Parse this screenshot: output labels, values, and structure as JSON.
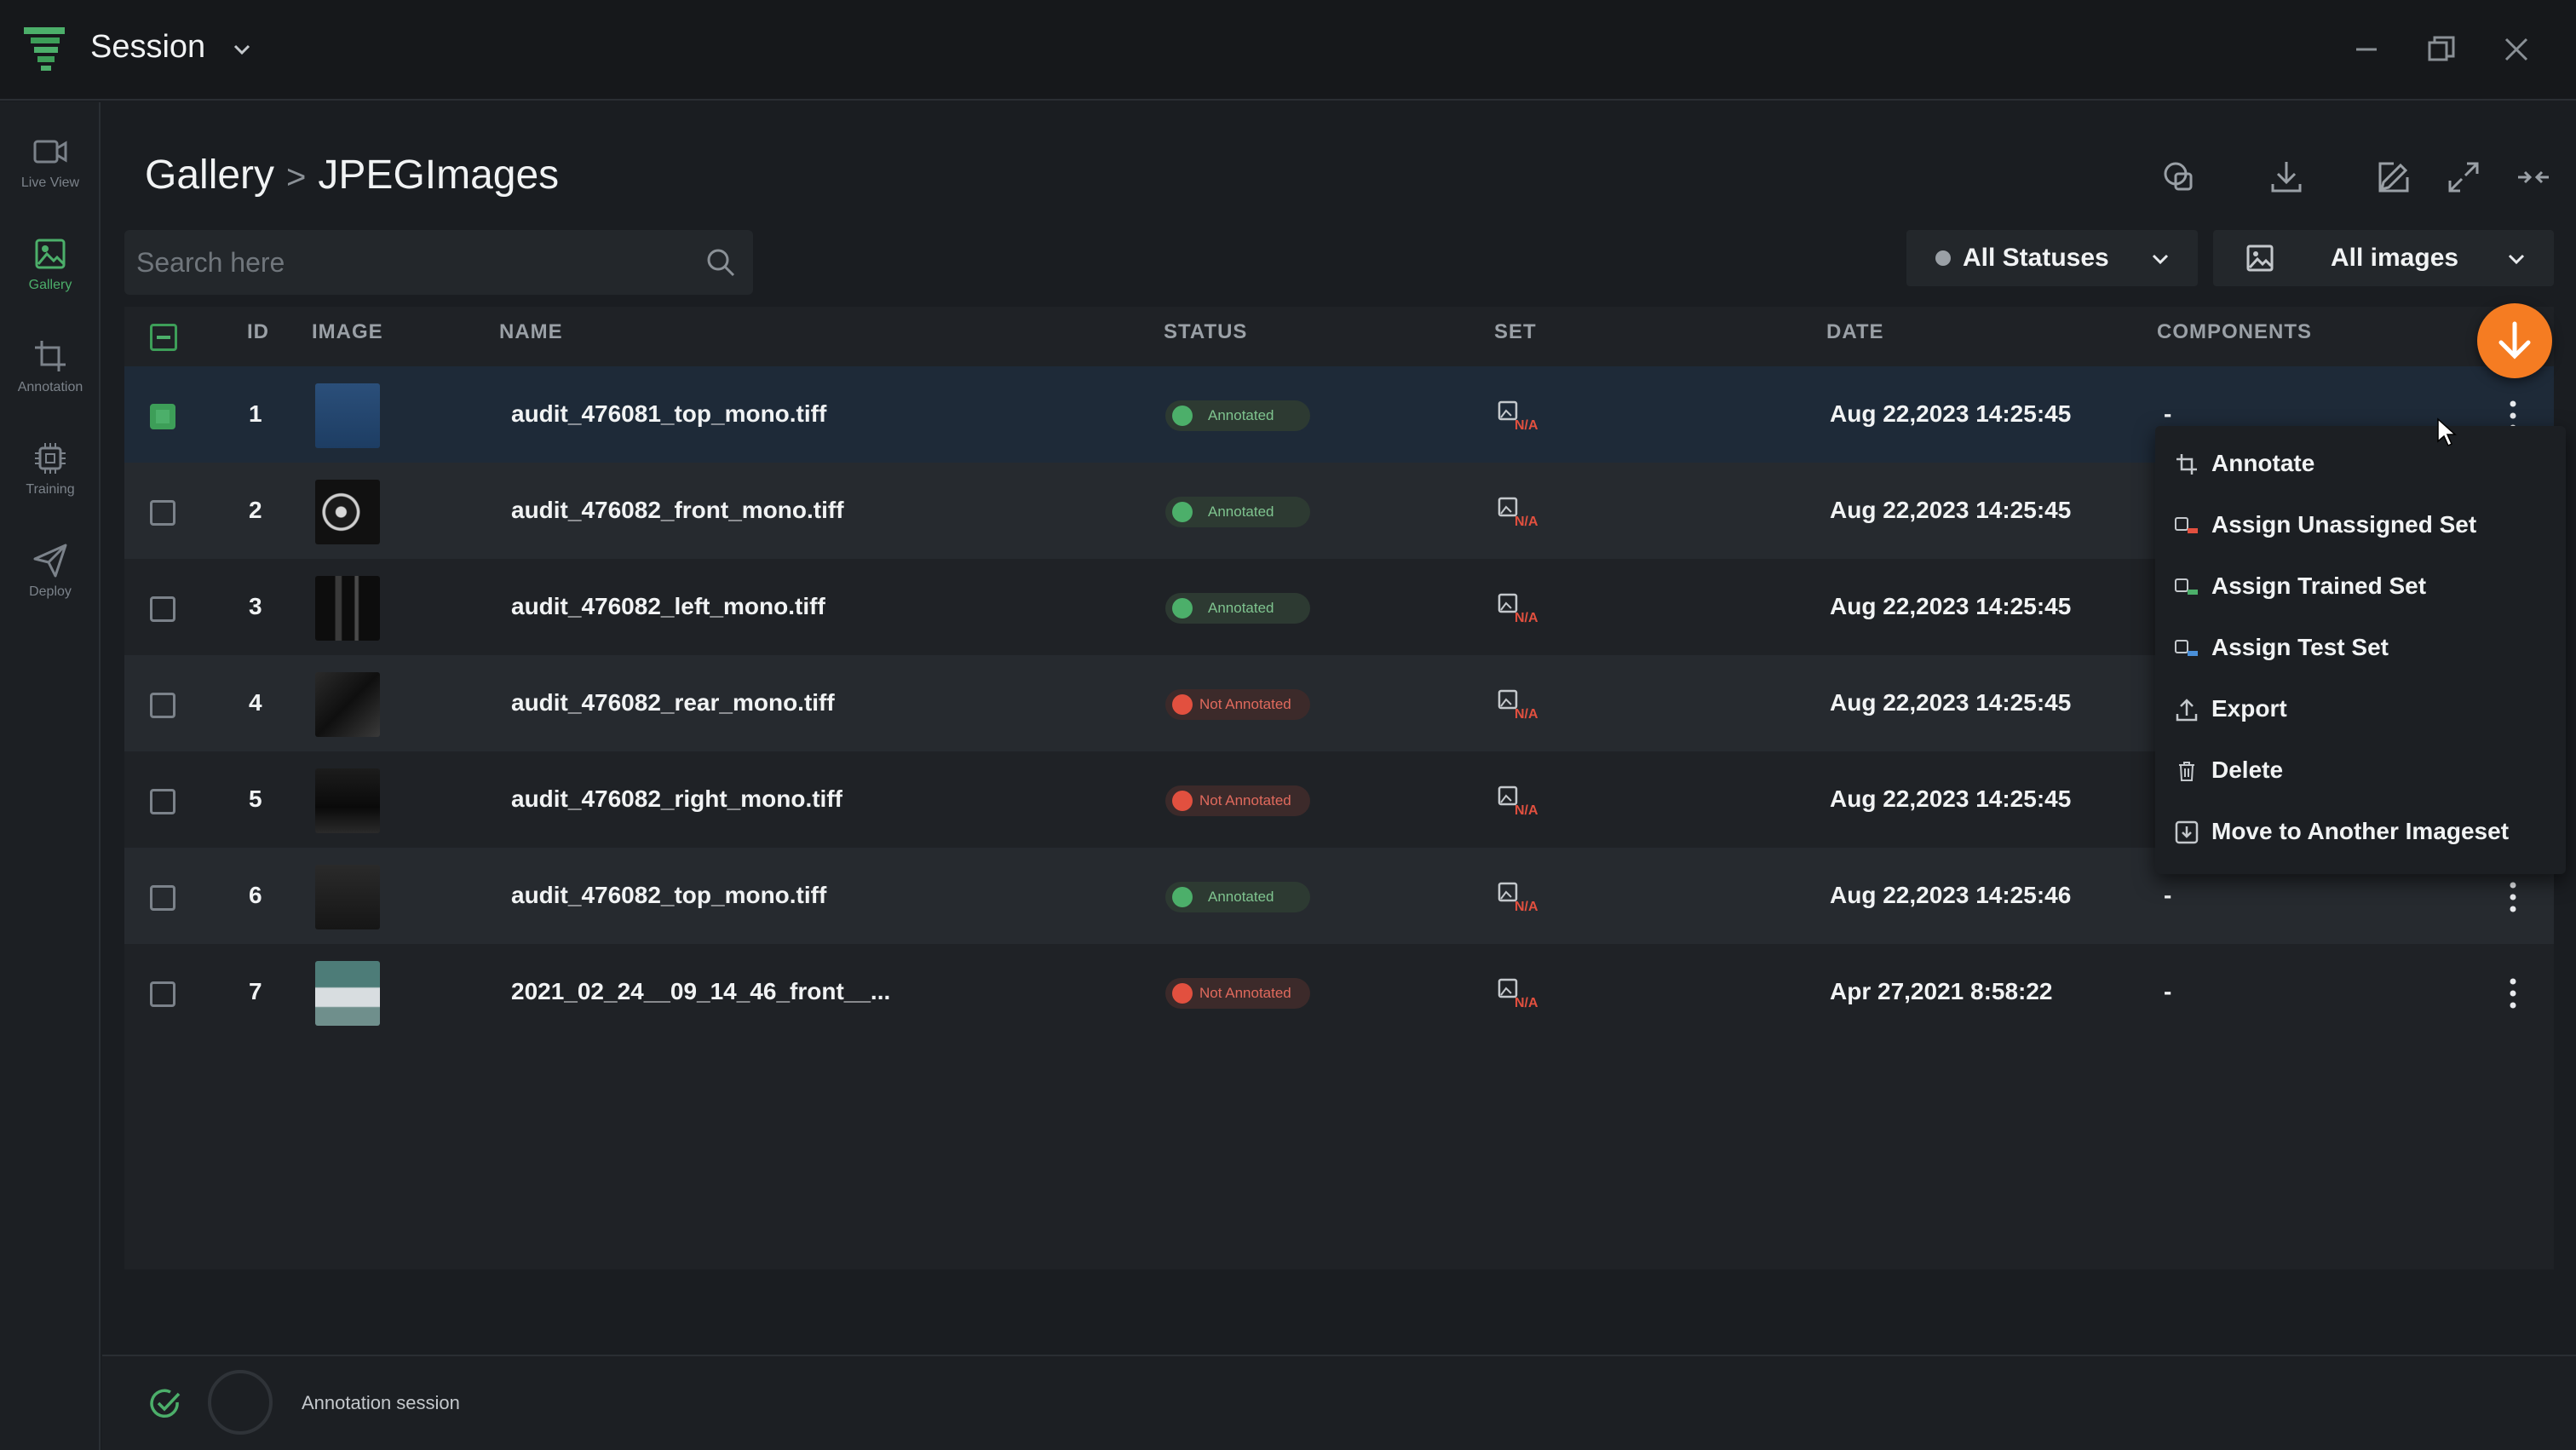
{
  "window": {
    "title": "Session",
    "accent": "#4caf6a",
    "fab_color": "#f57c22"
  },
  "sidebar": {
    "items": [
      {
        "label": "Live View",
        "icon": "video-icon"
      },
      {
        "label": "Gallery",
        "icon": "image-icon",
        "active": true
      },
      {
        "label": "Annotation",
        "icon": "crop-icon"
      },
      {
        "label": "Training",
        "icon": "chip-icon"
      },
      {
        "label": "Deploy",
        "icon": "send-icon"
      }
    ]
  },
  "breadcrumb": {
    "root": "Gallery",
    "separator": ">",
    "current": "JPEGImages"
  },
  "search": {
    "placeholder": "Search here",
    "value": ""
  },
  "filters": {
    "status": "All Statuses",
    "images": "All images"
  },
  "table": {
    "headers": [
      "ID",
      "IMAGE",
      "NAME",
      "STATUS",
      "SET",
      "DATE",
      "COMPONENTS"
    ],
    "rows": [
      {
        "id": "1",
        "name": "audit_476081_top_mono.tiff",
        "status": "Annotated",
        "set": "N/A",
        "date": "Aug 22,2023 14:25:45",
        "components": "-",
        "selected": true
      },
      {
        "id": "2",
        "name": "audit_476082_front_mono.tiff",
        "status": "Annotated",
        "set": "N/A",
        "date": "Aug 22,2023 14:25:45",
        "components": ""
      },
      {
        "id": "3",
        "name": "audit_476082_left_mono.tiff",
        "status": "Annotated",
        "set": "N/A",
        "date": "Aug 22,2023 14:25:45",
        "components": ""
      },
      {
        "id": "4",
        "name": "audit_476082_rear_mono.tiff",
        "status": "Not Annotated",
        "set": "N/A",
        "date": "Aug 22,2023 14:25:45",
        "components": ""
      },
      {
        "id": "5",
        "name": "audit_476082_right_mono.tiff",
        "status": "Not Annotated",
        "set": "N/A",
        "date": "Aug 22,2023 14:25:45",
        "components": ""
      },
      {
        "id": "6",
        "name": "audit_476082_top_mono.tiff",
        "status": "Annotated",
        "set": "N/A",
        "date": "Aug 22,2023 14:25:46",
        "components": "-"
      },
      {
        "id": "7",
        "name": "2021_02_24__09_14_46_front__...",
        "status": "Not Annotated",
        "set": "N/A",
        "date": "Apr 27,2021 8:58:22",
        "components": "-"
      }
    ]
  },
  "context_menu": {
    "items": [
      {
        "label": "Annotate",
        "icon": "crop-icon"
      },
      {
        "label": "Assign Unassigned Set",
        "icon": "set-unassigned-icon"
      },
      {
        "label": "Assign Trained Set",
        "icon": "set-trained-icon"
      },
      {
        "label": "Assign Test Set",
        "icon": "set-test-icon"
      },
      {
        "label": "Export",
        "icon": "upload-icon"
      },
      {
        "label": "Delete",
        "icon": "trash-icon"
      },
      {
        "label": "Move to Another Imageset",
        "icon": "move-icon"
      }
    ]
  },
  "footer": {
    "label": "Annotation session"
  }
}
